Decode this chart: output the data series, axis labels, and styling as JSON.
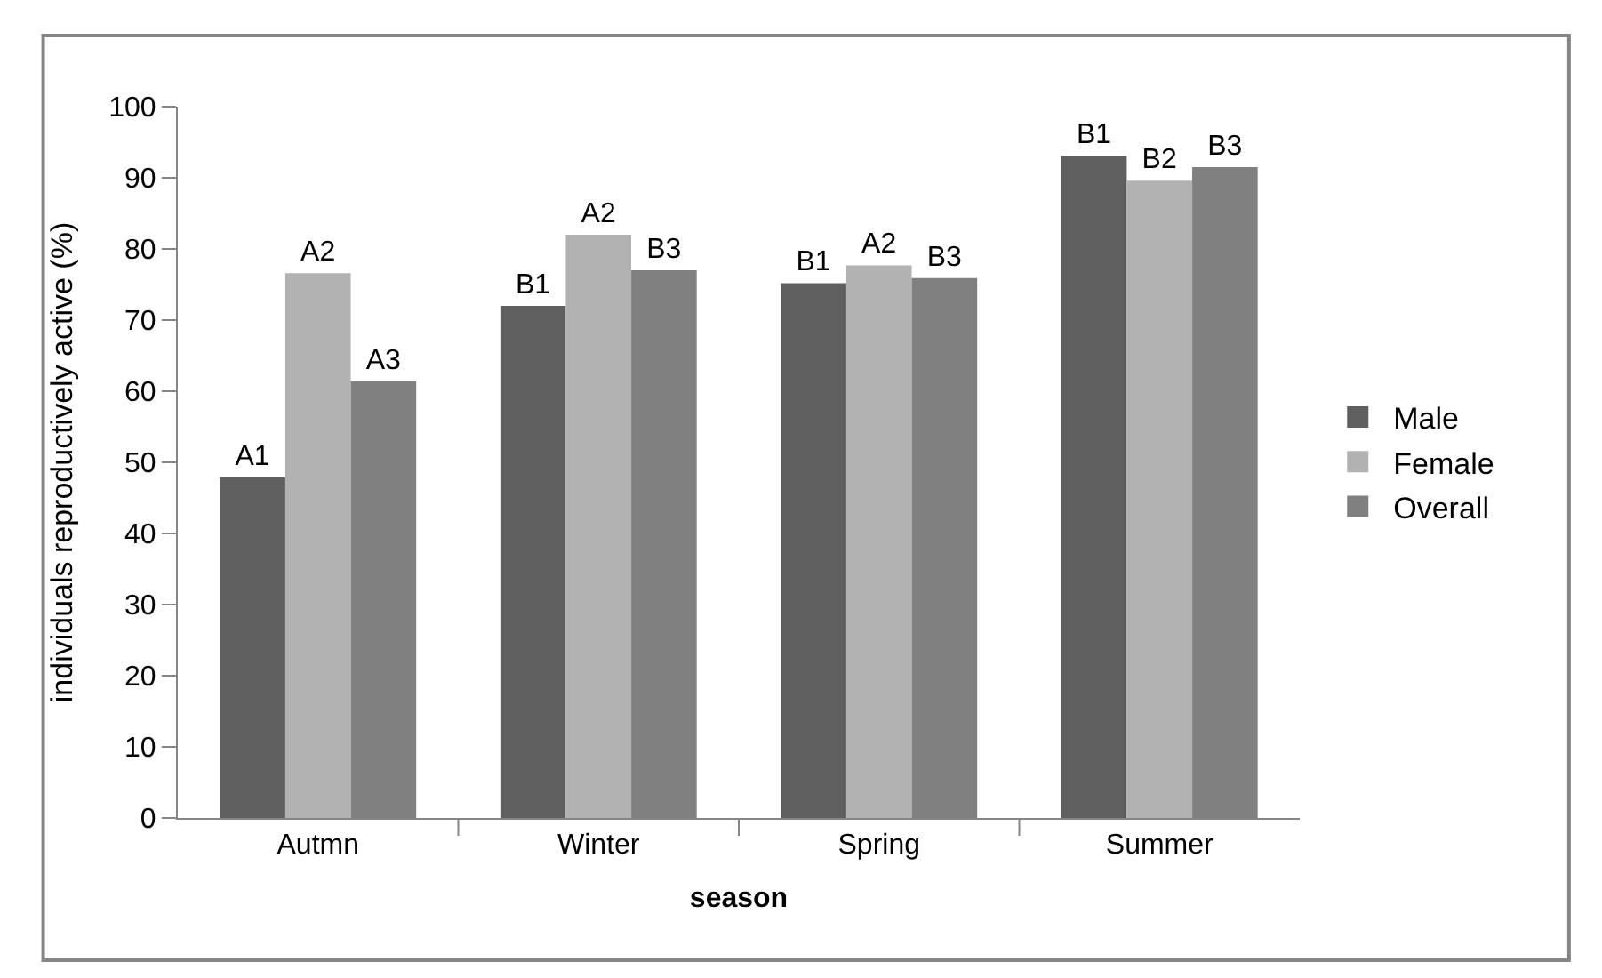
{
  "chart_data": {
    "type": "bar",
    "xlabel": "season",
    "ylabel": "individuals reproductively active (%)",
    "categories": [
      "Autmn",
      "Winter",
      "Spring",
      "Summer"
    ],
    "series": [
      {
        "name": "Male",
        "color": "#5f5f5f",
        "values": [
          47.9,
          72.0,
          75.2,
          93.1
        ],
        "value_labels": [
          "A1",
          "B1",
          "B1",
          "B1"
        ]
      },
      {
        "name": "Female",
        "color": "#b2b2b2",
        "values": [
          76.6,
          82.0,
          77.7,
          89.6
        ],
        "value_labels": [
          "A2",
          "A2",
          "A2",
          "B2"
        ]
      },
      {
        "name": "Overall",
        "color": "#808080",
        "values": [
          61.4,
          77.0,
          75.9,
          91.5
        ],
        "value_labels": [
          "A3",
          "B3",
          "B3",
          "B3"
        ]
      }
    ],
    "ylim": [
      0,
      100
    ],
    "yticks": [
      0,
      10,
      20,
      30,
      40,
      50,
      60,
      70,
      80,
      90,
      100
    ],
    "legend": "right"
  }
}
